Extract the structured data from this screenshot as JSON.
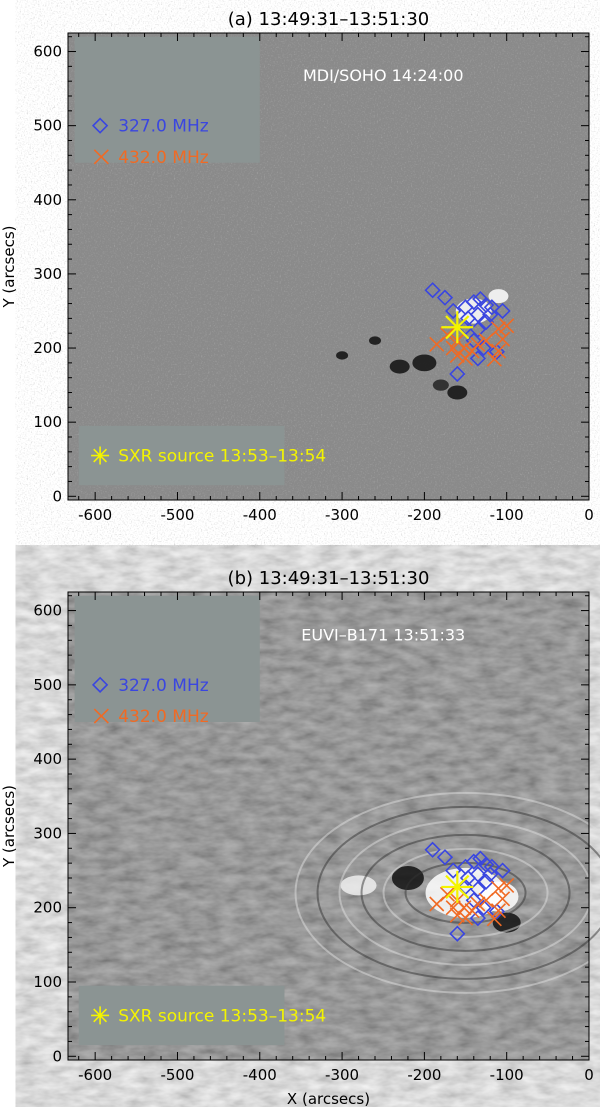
{
  "chart_data": [
    {
      "type": "scatter",
      "panel": "a",
      "title": "(a) 13:49:31–13:51:30",
      "image_label": "MDI/SOHO 14:24:00",
      "background": "magnetogram",
      "xlabel": "",
      "ylabel": "Y (arcsecs)",
      "xlim": [
        -633,
        0
      ],
      "ylim": [
        -5,
        625
      ],
      "xticks": [
        -600,
        -500,
        -400,
        -300,
        -200,
        -100,
        0
      ],
      "yticks": [
        0,
        100,
        200,
        300,
        400,
        500,
        600
      ],
      "legend": {
        "position": "top-left",
        "entries": [
          "327.0 MHz",
          "432.0 MHz"
        ]
      },
      "sxr_label": "SXR source 13:53–13:54"
    },
    {
      "type": "scatter",
      "panel": "b",
      "title": "(b) 13:49:31–13:51:30",
      "image_label": "EUVI–B171 13:51:33",
      "background": "euv-difference",
      "xlabel": "X (arcsecs)",
      "ylabel": "Y (arcsecs)",
      "xlim": [
        -633,
        0
      ],
      "ylim": [
        -5,
        625
      ],
      "xticks": [
        -600,
        -500,
        -400,
        -300,
        -200,
        -100,
        0
      ],
      "yticks": [
        0,
        100,
        200,
        300,
        400,
        500,
        600
      ],
      "legend": {
        "position": "top-left",
        "entries": [
          "327.0 MHz",
          "432.0 MHz"
        ]
      },
      "sxr_label": "SXR source 13:53–13:54"
    }
  ],
  "series": [
    {
      "name": "327.0 MHz",
      "marker": "diamond",
      "color": "#3a46e0",
      "points": [
        [
          -190,
          278
        ],
        [
          -175,
          268
        ],
        [
          -165,
          250
        ],
        [
          -150,
          255
        ],
        [
          -140,
          262
        ],
        [
          -132,
          266
        ],
        [
          -125,
          258
        ],
        [
          -118,
          255
        ],
        [
          -105,
          250
        ],
        [
          -135,
          245
        ],
        [
          -147,
          240
        ],
        [
          -125,
          235
        ],
        [
          -135,
          225
        ],
        [
          -140,
          210
        ],
        [
          -128,
          200
        ],
        [
          -135,
          186
        ],
        [
          -112,
          195
        ],
        [
          -160,
          165
        ],
        [
          -150,
          228
        ],
        [
          -120,
          245
        ]
      ]
    },
    {
      "name": "432.0 MHz",
      "marker": "x",
      "color": "#f06a24",
      "points": [
        [
          -185,
          205
        ],
        [
          -172,
          218
        ],
        [
          -165,
          200
        ],
        [
          -160,
          190
        ],
        [
          -152,
          200
        ],
        [
          -142,
          196
        ],
        [
          -125,
          210
        ],
        [
          -110,
          226
        ],
        [
          -105,
          212
        ],
        [
          -110,
          196
        ],
        [
          -115,
          185
        ],
        [
          -150,
          186
        ],
        [
          -135,
          205
        ],
        [
          -160,
          210
        ],
        [
          -100,
          230
        ]
      ]
    },
    {
      "name": "SXR source",
      "marker": "star",
      "color": "#f4f400",
      "points": [
        [
          -160,
          228
        ]
      ]
    }
  ]
}
